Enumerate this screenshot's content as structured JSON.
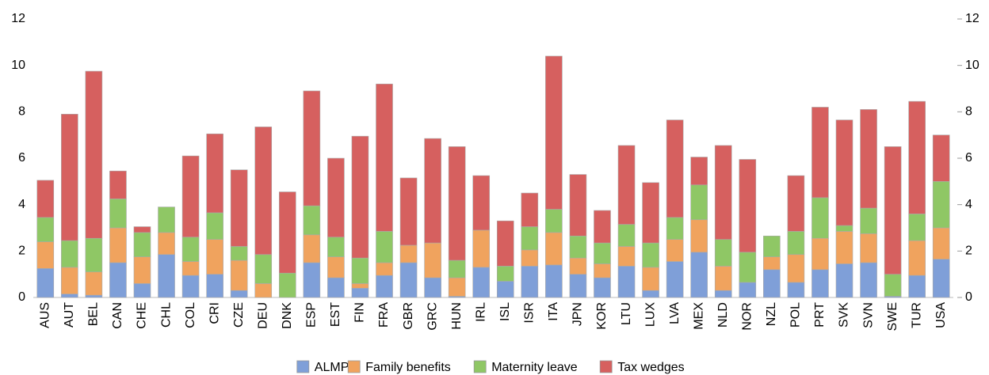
{
  "chart_data": {
    "type": "stacked_bar",
    "categories": [
      "AUS",
      "AUT",
      "BEL",
      "CAN",
      "CHE",
      "CHL",
      "COL",
      "CRI",
      "CZE",
      "DEU",
      "DNK",
      "ESP",
      "EST",
      "FIN",
      "FRA",
      "GBR",
      "GRC",
      "HUN",
      "IRL",
      "ISL",
      "ISR",
      "ITA",
      "JPN",
      "KOR",
      "LTU",
      "LUX",
      "LVA",
      "MEX",
      "NLD",
      "NOR",
      "NZL",
      "POL",
      "PRT",
      "SVK",
      "SVN",
      "SWE",
      "TUR",
      "USA"
    ],
    "series": [
      {
        "name": "ALMP",
        "color": "#7f9fd8",
        "values": [
          1.25,
          0.15,
          0.1,
          1.5,
          0.6,
          1.85,
          0.95,
          1.0,
          0.3,
          0,
          0,
          1.5,
          0.85,
          0.4,
          0.95,
          1.5,
          0.85,
          0.05,
          1.3,
          0.7,
          1.35,
          1.4,
          1.0,
          0.85,
          1.35,
          0.3,
          1.55,
          1.95,
          0.3,
          0.65,
          1.2,
          0.65,
          1.2,
          1.45,
          1.5,
          0.05,
          0.95,
          1.65
        ]
      },
      {
        "name": "Family benefits",
        "color": "#f0a35e",
        "values": [
          1.15,
          1.15,
          1.0,
          1.5,
          1.15,
          0.95,
          0.6,
          1.5,
          1.3,
          0.6,
          0,
          1.2,
          0.9,
          0.2,
          0.55,
          0.75,
          1.5,
          0.8,
          1.6,
          0,
          0.7,
          1.4,
          0.7,
          0.6,
          0.85,
          1.0,
          0.95,
          1.4,
          1.05,
          0,
          0.55,
          1.2,
          1.35,
          1.4,
          1.25,
          0,
          1.5,
          1.35
        ]
      },
      {
        "name": "Maternity leave",
        "color": "#8fc765",
        "values": [
          1.05,
          1.15,
          1.45,
          1.25,
          1.05,
          1.1,
          1.05,
          1.15,
          0.6,
          1.25,
          1.05,
          1.25,
          0.85,
          1.1,
          1.35,
          0,
          0,
          0.75,
          0,
          0.65,
          1.0,
          1.0,
          0.95,
          0.9,
          0.95,
          1.05,
          0.95,
          1.5,
          1.15,
          1.3,
          0.9,
          1.0,
          1.75,
          0.25,
          1.1,
          0.95,
          1.15,
          2.0
        ]
      },
      {
        "name": "Tax wedges",
        "color": "#d6605f",
        "values": [
          1.6,
          5.45,
          7.2,
          1.2,
          0.25,
          0,
          3.5,
          3.4,
          3.3,
          5.5,
          3.5,
          4.95,
          3.4,
          5.25,
          6.35,
          2.9,
          4.5,
          4.9,
          2.35,
          1.95,
          1.45,
          6.6,
          2.65,
          1.4,
          3.4,
          2.6,
          4.2,
          1.2,
          4.05,
          4.0,
          0,
          2.4,
          3.9,
          4.55,
          4.25,
          5.5,
          4.85,
          2.0
        ]
      }
    ],
    "ylim": [
      0,
      12
    ],
    "yticks": [
      0,
      2,
      4,
      6,
      8,
      10,
      12
    ],
    "y2lim": [
      0,
      12
    ],
    "y2ticks": [
      0,
      2,
      4,
      6,
      8,
      10,
      12
    ]
  }
}
